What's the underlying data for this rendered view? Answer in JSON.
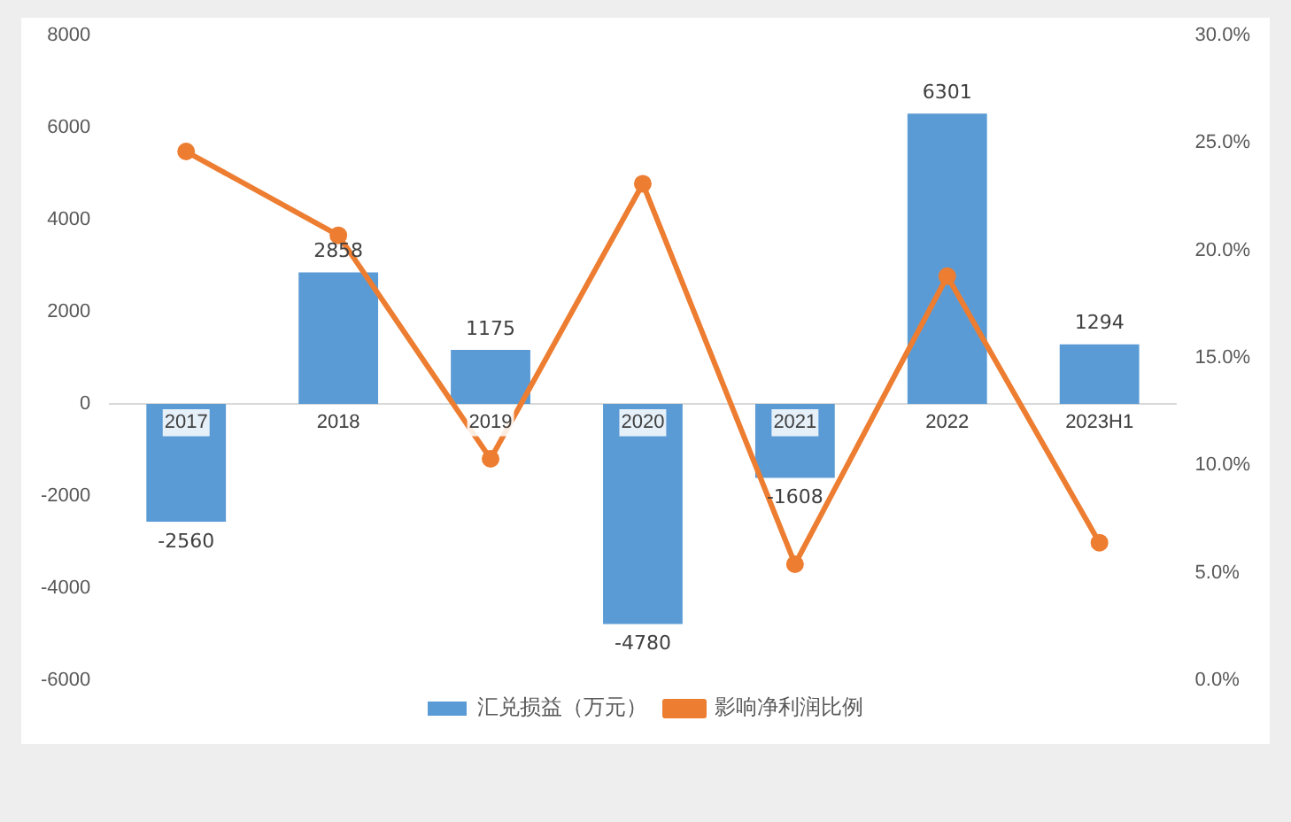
{
  "chart_data": {
    "type": "bar",
    "categories": [
      "2017",
      "2018",
      "2019",
      "2020",
      "2021",
      "2022",
      "2023H1"
    ],
    "series": [
      {
        "name": "汇兑损益（万元）",
        "color": "#5b9bd5",
        "values": [
          -2560,
          2858,
          1175,
          -4780,
          -1608,
          6301,
          1294
        ],
        "value_labels": [
          "-2560",
          "2858",
          "1175",
          "-4780",
          "-1608",
          "6301",
          "1294"
        ]
      },
      {
        "name": "影响净利润比例",
        "type": "line",
        "axis": "y2",
        "color": "#ed7d31",
        "values": [
          24.6,
          20.7,
          10.3,
          23.1,
          5.4,
          18.8,
          6.4
        ]
      }
    ],
    "ylim": [
      -6000,
      8000
    ],
    "yticks": [
      -6000,
      -4000,
      -2000,
      0,
      2000,
      4000,
      6000,
      8000
    ],
    "y2lim": [
      0,
      30
    ],
    "y2ticks": [
      {
        "value": 0,
        "label": "0.0%"
      },
      {
        "value": 5,
        "label": "5.0%"
      },
      {
        "value": 10,
        "label": "10.0%"
      },
      {
        "value": 15,
        "label": "15.0%"
      },
      {
        "value": 20,
        "label": "20.0%"
      },
      {
        "value": 25,
        "label": "25.0%"
      },
      {
        "value": 30,
        "label": "30.0%"
      }
    ],
    "marker": "circle",
    "line_style": "solid",
    "legend": "bottom",
    "grid": false
  }
}
